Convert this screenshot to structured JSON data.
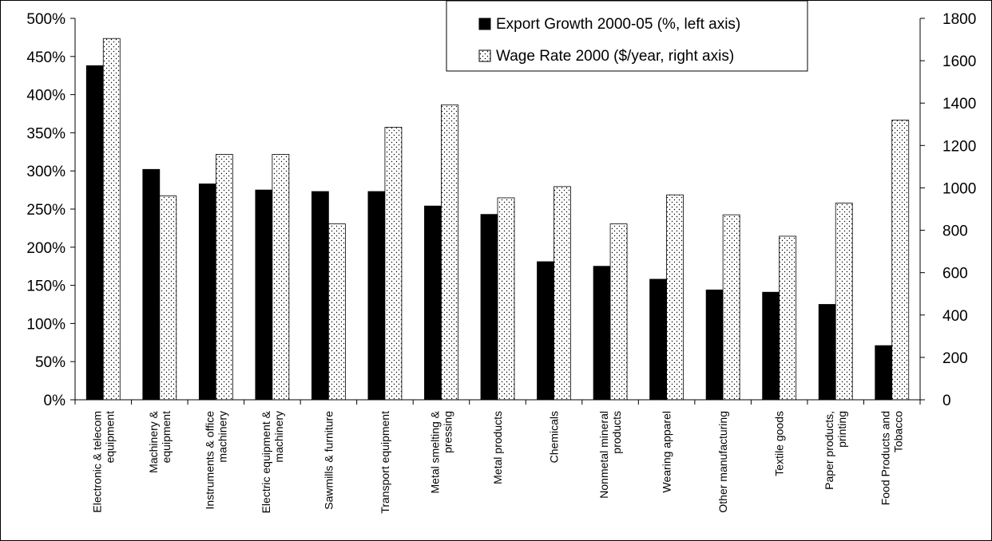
{
  "chart_data": {
    "type": "bar",
    "categories": [
      [
        "Electronic & telecom",
        "equipment"
      ],
      [
        "Machinery &",
        "equipment"
      ],
      [
        "Instruments & office",
        "machinery"
      ],
      [
        "Electric equipment &",
        "machinery"
      ],
      [
        "Sawmills & furniture"
      ],
      [
        "Transport equipment"
      ],
      [
        "Metal smelting &",
        "pressing"
      ],
      [
        "Metal products"
      ],
      [
        "Chemicals"
      ],
      [
        "Nonmetal mineral",
        "products"
      ],
      [
        "Wearing apparel"
      ],
      [
        "Other manufacturing"
      ],
      [
        "Textile goods"
      ],
      [
        "Paper products,",
        "printing"
      ],
      [
        "Food Products and",
        "Tobacco"
      ]
    ],
    "series": [
      {
        "name": "Export Growth 2000-05 (%, left axis)",
        "axis": "left",
        "fill": "solid",
        "color": "#000000",
        "values": [
          438,
          302,
          283,
          275,
          273,
          273,
          254,
          243,
          181,
          175,
          158,
          144,
          141,
          125,
          71
        ]
      },
      {
        "name": "Wage Rate 2000 ($/year, right axis)",
        "axis": "right",
        "fill": "dotted",
        "color": "#ffffff",
        "values": [
          1705,
          962,
          1158,
          1158,
          830,
          1286,
          1392,
          953,
          1006,
          830,
          967,
          873,
          772,
          928,
          1320
        ]
      }
    ],
    "y_left": {
      "range": [
        0,
        500
      ],
      "ticks": [
        0,
        50,
        100,
        150,
        200,
        250,
        300,
        350,
        400,
        450,
        500
      ],
      "tick_labels": [
        "0%",
        "50%",
        "100%",
        "150%",
        "200%",
        "250%",
        "300%",
        "350%",
        "400%",
        "450%",
        "500%"
      ]
    },
    "y_right": {
      "range": [
        0,
        1800
      ],
      "ticks": [
        0,
        200,
        400,
        600,
        800,
        1000,
        1200,
        1400,
        1600,
        1800
      ],
      "tick_labels": [
        "0",
        "200",
        "400",
        "600",
        "800",
        "1000",
        "1200",
        "1400",
        "1600",
        "1800"
      ]
    },
    "legend_placement": "top-right",
    "grid": false
  }
}
